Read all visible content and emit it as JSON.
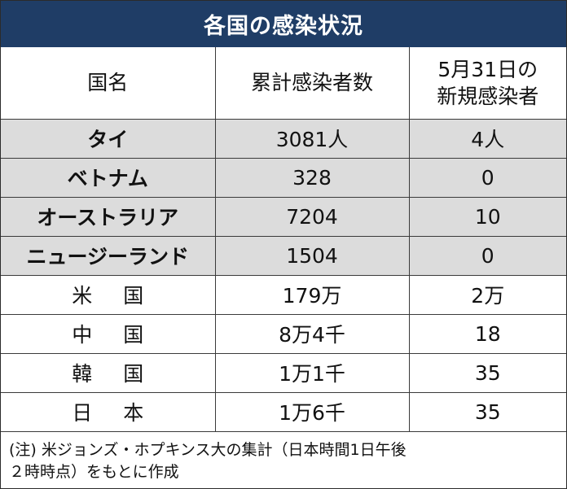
{
  "title": "各国の感染状況",
  "header": {
    "country": "国名",
    "cumulative": "累計感染者数",
    "new_line1": "5月31日の",
    "new_line2": "新規感染者"
  },
  "rows": [
    {
      "name_a": "タイ",
      "name_b": "",
      "cumulative": "3081人",
      "new": "4人",
      "shaded": true
    },
    {
      "name_a": "ベトナム",
      "name_b": "",
      "cumulative": "328",
      "new": "0",
      "shaded": true
    },
    {
      "name_a": "オーストラリア",
      "name_b": "",
      "cumulative": "7204",
      "new": "10",
      "shaded": true
    },
    {
      "name_a": "ニュージーランド",
      "name_b": "",
      "cumulative": "1504",
      "new": "0",
      "shaded": true
    },
    {
      "name_a": "米",
      "name_b": "国",
      "cumulative": "179万",
      "new": "2万",
      "shaded": false
    },
    {
      "name_a": "中",
      "name_b": "国",
      "cumulative": "8万4千",
      "new": "18",
      "shaded": false
    },
    {
      "name_a": "韓",
      "name_b": "国",
      "cumulative": "1万1千",
      "new": "35",
      "shaded": false
    },
    {
      "name_a": "日",
      "name_b": "本",
      "cumulative": "1万6千",
      "new": "35",
      "shaded": false
    }
  ],
  "note_line1": "(注) 米ジョンズ・ホプキンス大の集計（日本時間1日午後",
  "note_line2": "２時時点）をもとに作成",
  "colors": {
    "title_bg": "#1f3d66",
    "shade": "#dcdcdc"
  }
}
